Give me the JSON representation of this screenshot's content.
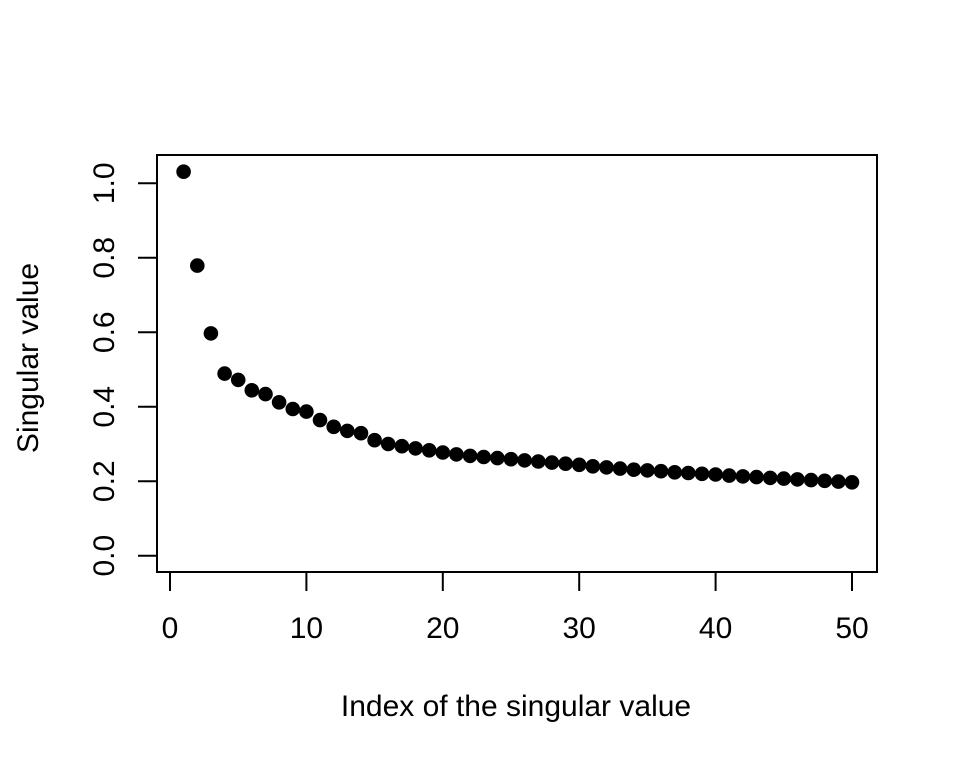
{
  "figure": {
    "background": "#ffffff",
    "foreground": "#000000"
  },
  "chart_data": {
    "type": "scatter",
    "title": "",
    "xlabel": "Index of the singular value",
    "ylabel": "Singular value",
    "x": [
      1,
      2,
      3,
      4,
      5,
      6,
      7,
      8,
      9,
      10,
      11,
      12,
      13,
      14,
      15,
      16,
      17,
      18,
      19,
      20,
      21,
      22,
      23,
      24,
      25,
      26,
      27,
      28,
      29,
      30,
      31,
      32,
      33,
      34,
      35,
      36,
      37,
      38,
      39,
      40,
      41,
      42,
      43,
      44,
      45,
      46,
      47,
      48,
      49,
      50
    ],
    "y": [
      1.031,
      0.779,
      0.597,
      0.489,
      0.472,
      0.444,
      0.434,
      0.412,
      0.394,
      0.387,
      0.364,
      0.346,
      0.335,
      0.329,
      0.31,
      0.3,
      0.294,
      0.288,
      0.283,
      0.277,
      0.272,
      0.268,
      0.265,
      0.262,
      0.259,
      0.256,
      0.253,
      0.25,
      0.247,
      0.244,
      0.24,
      0.237,
      0.234,
      0.231,
      0.229,
      0.227,
      0.224,
      0.222,
      0.22,
      0.218,
      0.215,
      0.213,
      0.211,
      0.209,
      0.207,
      0.205,
      0.203,
      0.201,
      0.199,
      0.197
    ],
    "xlim": [
      -0.96,
      51.96
    ],
    "ylim": [
      -0.044,
      1.076
    ],
    "xticks": [
      0,
      10,
      20,
      30,
      40,
      50
    ],
    "xtick_labels": [
      "0",
      "10",
      "20",
      "30",
      "40",
      "50"
    ],
    "yticks": [
      0.0,
      0.2,
      0.4,
      0.6,
      0.8,
      1.0
    ],
    "ytick_labels": [
      "0.0",
      "0.2",
      "0.4",
      "0.6",
      "0.8",
      "1.0"
    ],
    "grid": false,
    "legend": null,
    "marker": {
      "shape": "circle",
      "radius_px": 7.3,
      "color": "#000000"
    },
    "frame": {
      "stroke": "#000000",
      "stroke_width": 2
    }
  }
}
